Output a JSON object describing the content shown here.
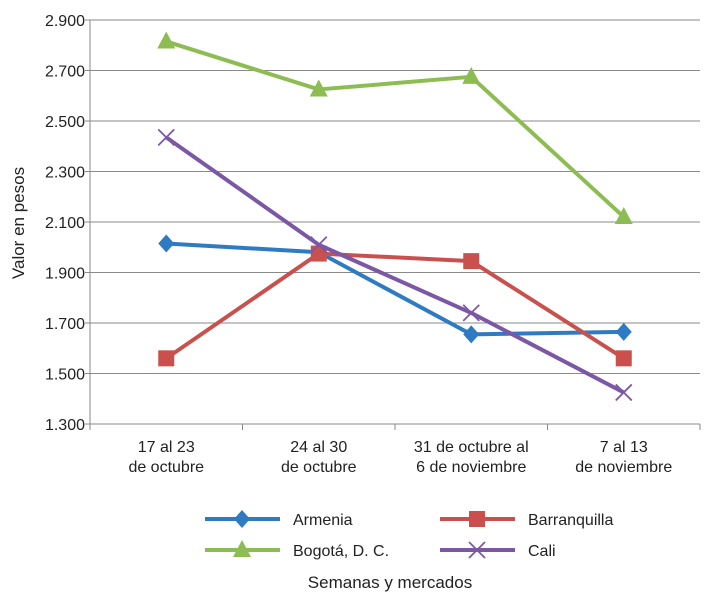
{
  "chart_data": {
    "type": "line",
    "xlabel": "Semanas y mercados",
    "ylabel": "Valor en pesos",
    "ylim": [
      1300,
      2900
    ],
    "yticks": [
      1300,
      1500,
      1700,
      1900,
      2100,
      2300,
      2500,
      2700,
      2900
    ],
    "ytick_labels": [
      "1.300",
      "1.500",
      "1.700",
      "1.900",
      "2.100",
      "2.300",
      "2.500",
      "2.700",
      "2.900"
    ],
    "grid": "horizontal",
    "legend_position": "bottom",
    "categories": [
      [
        "17 al 23",
        "de octubre"
      ],
      [
        "24 al 30",
        "de octubre"
      ],
      [
        "31 de octubre al",
        "6 de noviembre"
      ],
      [
        "7 al 13",
        "de noviembre"
      ]
    ],
    "series": [
      {
        "name": "Armenia",
        "color": "#2e7bc4",
        "marker": "diamond",
        "values": [
          2015,
          1980,
          1655,
          1665
        ]
      },
      {
        "name": "Barranquilla",
        "color": "#c9504c",
        "marker": "square",
        "values": [
          1560,
          1975,
          1945,
          1560
        ]
      },
      {
        "name": "Bogotá, D. C.",
        "color": "#8dbd52",
        "marker": "triangle",
        "values": [
          2815,
          2625,
          2675,
          2120
        ]
      },
      {
        "name": "Cali",
        "color": "#7b58a6",
        "marker": "x",
        "values": [
          2435,
          2010,
          1740,
          1425
        ]
      }
    ]
  }
}
